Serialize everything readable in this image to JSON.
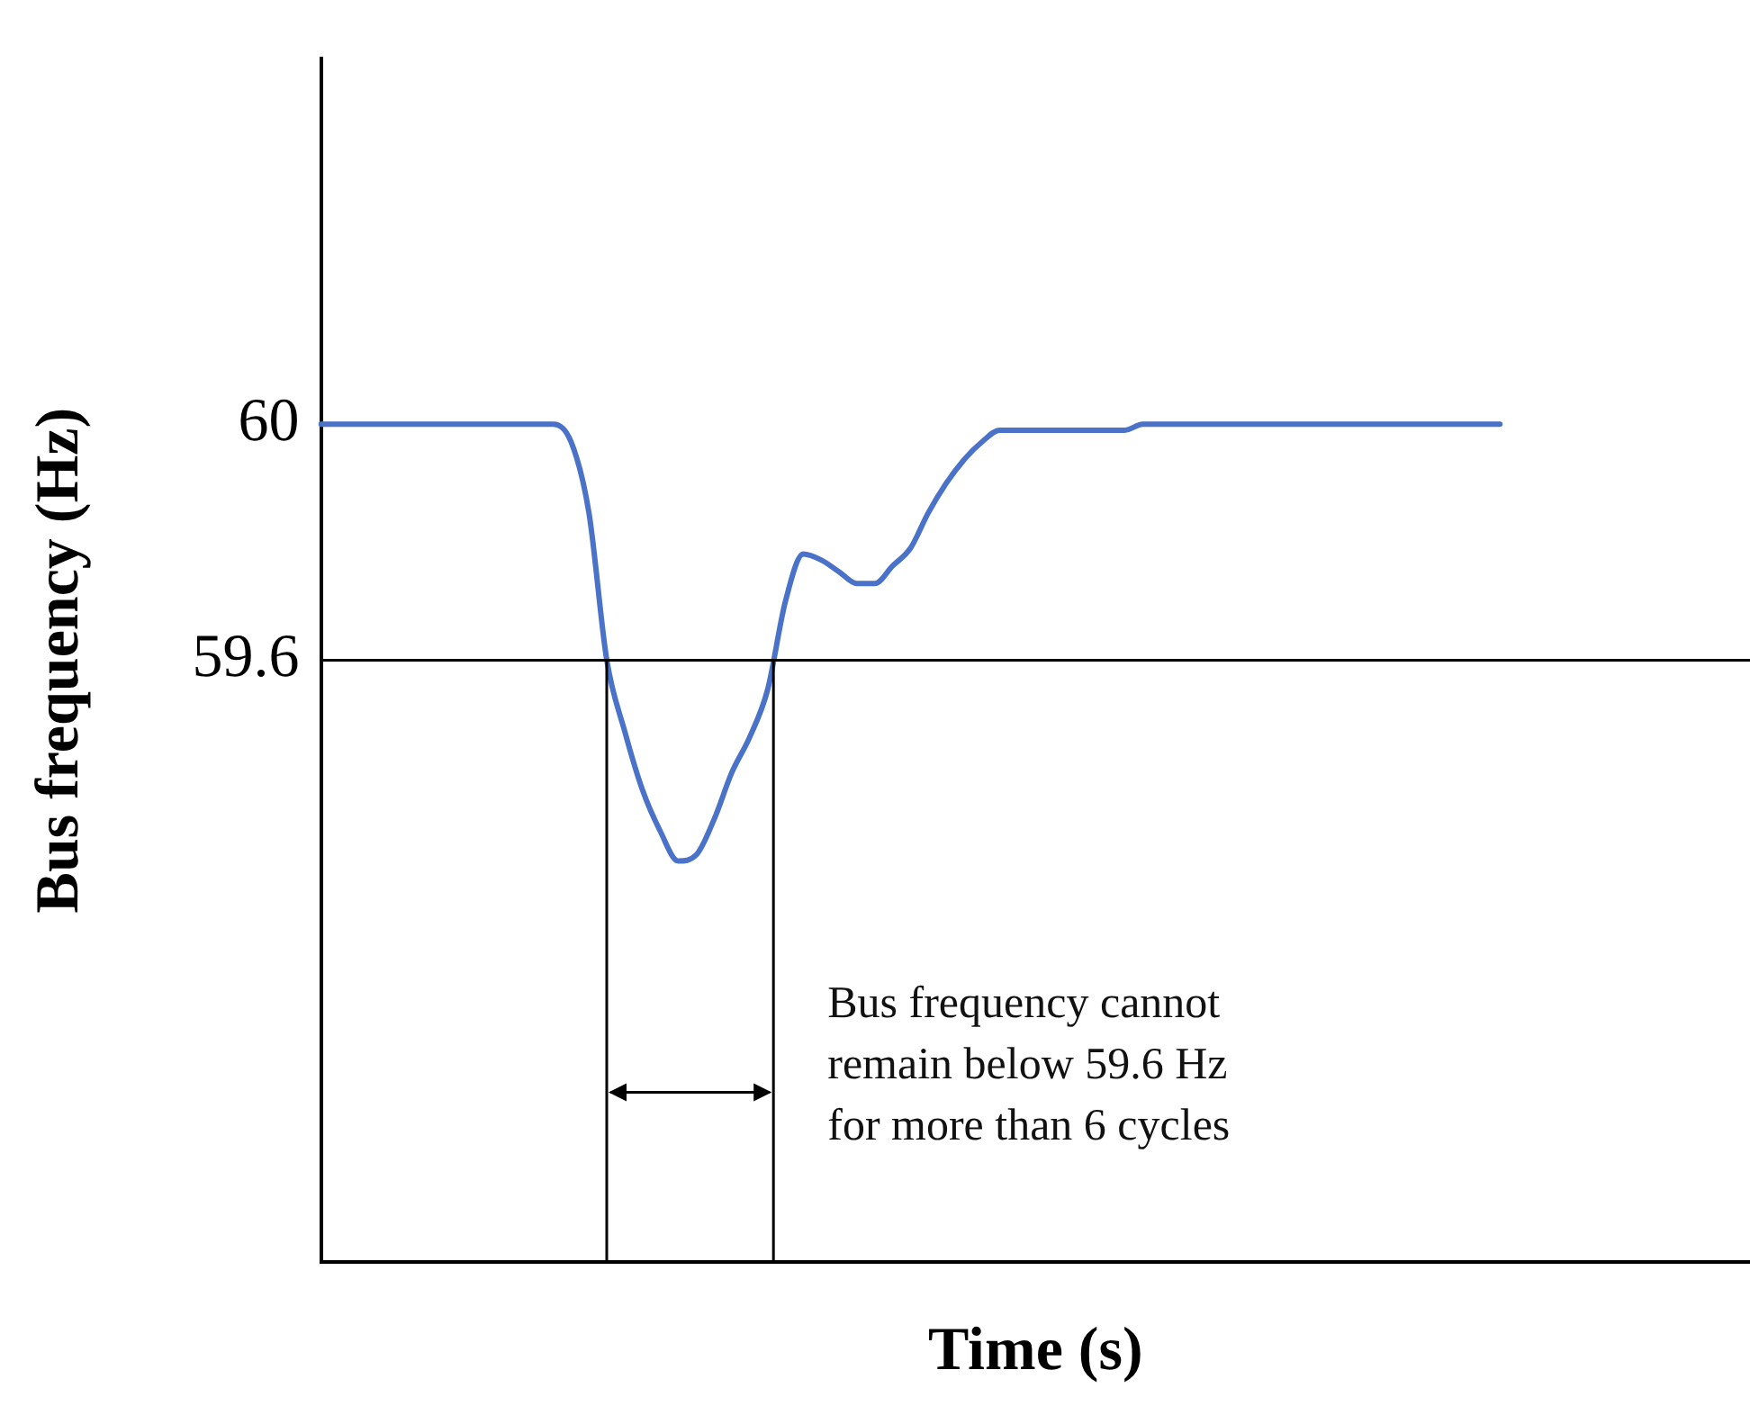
{
  "chart_data": {
    "type": "line",
    "xlabel": "Time (s)",
    "ylabel": "Bus frequency (Hz)",
    "categories": [
      null,
      null,
      null,
      null,
      null,
      null,
      null,
      null,
      null,
      null,
      null,
      null,
      null,
      null,
      null,
      null,
      null,
      null,
      null,
      null,
      null,
      null,
      null,
      null,
      null,
      null,
      null,
      null,
      null,
      null,
      null,
      null,
      null,
      null,
      null,
      null,
      null,
      null,
      null,
      null,
      null,
      null,
      null,
      null,
      null,
      null,
      null,
      null,
      null,
      null,
      null,
      null,
      null,
      null,
      null,
      null,
      null,
      null,
      null,
      null,
      null,
      null,
      null,
      null,
      null,
      null,
      null,
      null,
      null,
      null,
      null,
      null,
      null,
      null,
      null,
      null,
      null,
      null,
      null,
      null,
      null
    ],
    "series": [
      {
        "color": "#4a72c8",
        "values": [
          60,
          60,
          60,
          60,
          60,
          60,
          60,
          60,
          60,
          60,
          60,
          60,
          60,
          60,
          59.97,
          59.85,
          59.6,
          59.48,
          59.38,
          59.31,
          59.26,
          59.27,
          59.33,
          59.41,
          59.47,
          59.55,
          59.7,
          59.78,
          59.77,
          59.75,
          59.73,
          59.73,
          59.76,
          59.79,
          59.85,
          59.9,
          59.94,
          59.97,
          59.99,
          59.99,
          59.99,
          59.99,
          59.99,
          59.99,
          59.99,
          59.99,
          60,
          60,
          60,
          60,
          60,
          60,
          60,
          60,
          60,
          60,
          60,
          60,
          60,
          60,
          60,
          60,
          60,
          60,
          60,
          60,
          60,
          null,
          null,
          null,
          null,
          null,
          null,
          null,
          null,
          null,
          null,
          null,
          null,
          null,
          null
        ]
      }
    ],
    "ylim": [
      58.58,
      60.62
    ],
    "yticks": [
      59.6,
      60
    ],
    "ref_lines": [
      {
        "axis": "y",
        "value": 59.6,
        "color": "#000000"
      }
    ],
    "annotations": [
      "Bus frequency cannot\nremain below 59.6 Hz\nfor more than 6 cycles"
    ],
    "grid": false,
    "legend": false,
    "marker": "none",
    "line_style": "solid",
    "tick_labels": "y"
  }
}
